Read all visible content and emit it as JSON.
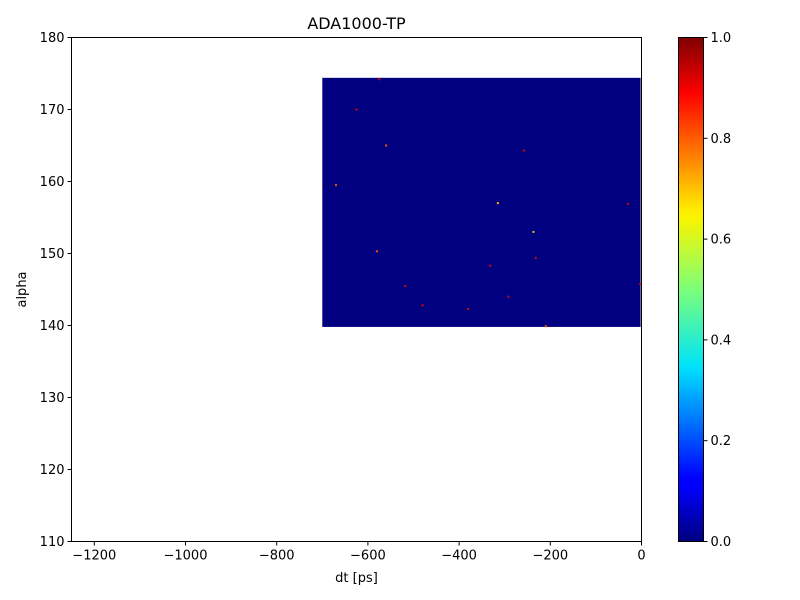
{
  "chart_data": {
    "type": "heatmap",
    "title": "ADA1000-TP",
    "xlabel": "dt [ps]",
    "ylabel": "alpha",
    "xlim": [
      -1250,
      0
    ],
    "ylim": [
      110,
      180
    ],
    "xticks": [
      -1200,
      -1000,
      -800,
      -600,
      -400,
      -200,
      0
    ],
    "yticks": [
      110,
      120,
      130,
      140,
      150,
      160,
      170,
      180
    ],
    "xtick_labels": [
      "−1200",
      "−1000",
      "−800",
      "−600",
      "−400",
      "−200",
      "0"
    ],
    "ytick_labels": [
      "110",
      "120",
      "130",
      "140",
      "150",
      "160",
      "170",
      "180"
    ],
    "data_region": {
      "x": [
        -700,
        -2
      ],
      "y": [
        139.8,
        174.4
      ],
      "value": 0.0
    },
    "hot_pixels": [
      {
        "x": -575,
        "y": 174.2,
        "value": 0.9
      },
      {
        "x": -625,
        "y": 170.0,
        "value": 0.9
      },
      {
        "x": -560,
        "y": 165.0,
        "value": 0.8
      },
      {
        "x": -258,
        "y": 164.3,
        "value": 0.9
      },
      {
        "x": -670,
        "y": 159.5,
        "value": 0.8
      },
      {
        "x": -30,
        "y": 156.9,
        "value": 0.9
      },
      {
        "x": -315,
        "y": 157.0,
        "value": 0.7
      },
      {
        "x": -237,
        "y": 153.0,
        "value": 0.7
      },
      {
        "x": -580,
        "y": 150.3,
        "value": 0.8
      },
      {
        "x": -232,
        "y": 149.4,
        "value": 0.9
      },
      {
        "x": -332,
        "y": 148.3,
        "value": 0.9
      },
      {
        "x": -518,
        "y": 145.5,
        "value": 0.9
      },
      {
        "x": -292,
        "y": 144.0,
        "value": 0.9
      },
      {
        "x": -480,
        "y": 142.8,
        "value": 0.9
      },
      {
        "x": -380,
        "y": 142.3,
        "value": 0.9
      },
      {
        "x": -3,
        "y": 145.8,
        "value": 0.9
      },
      {
        "x": -210,
        "y": 139.9,
        "value": 0.8
      }
    ],
    "colorbar": {
      "colormap": "jet",
      "range": [
        0.0,
        1.0
      ],
      "ticks": [
        0.0,
        0.2,
        0.4,
        0.6,
        0.8,
        1.0
      ],
      "tick_labels": [
        "0.0",
        "0.2",
        "0.4",
        "0.6",
        "0.8",
        "1.0"
      ]
    },
    "grid": false
  }
}
